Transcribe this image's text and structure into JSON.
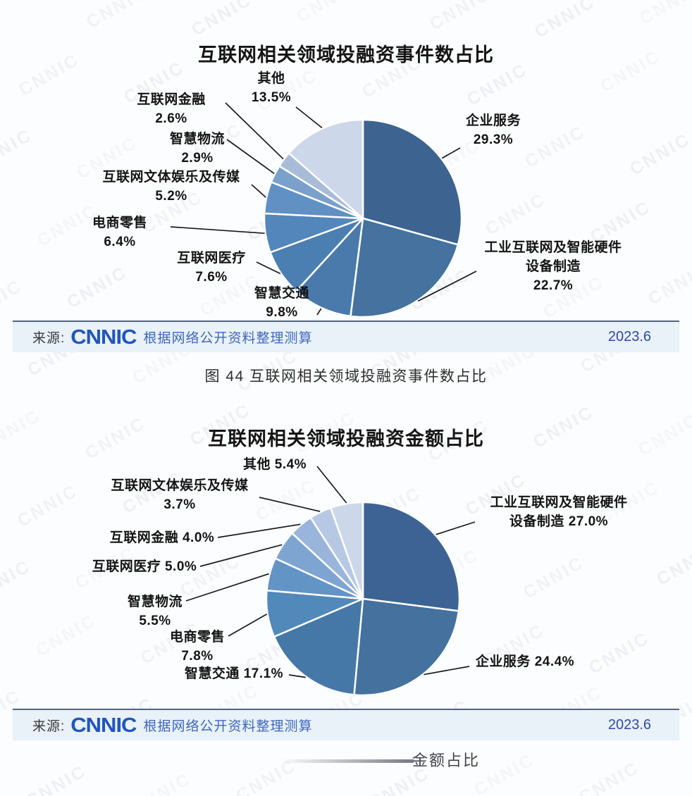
{
  "watermark": {
    "text": "CNNIC"
  },
  "chart_data": [
    {
      "type": "pie",
      "title": "互联网相关领域投融资事件数占比",
      "value_unit": "%",
      "start_angle_deg": 0,
      "direction": "clockwise",
      "legend_position": "none",
      "label_style": "callout-with-leader-lines",
      "slices": [
        {
          "label": "企业服务",
          "value": 29.3,
          "color": "#3D6391",
          "callout": [
            "企业服务",
            "29.3%"
          ]
        },
        {
          "label": "工业互联网及智能硬件设备制造",
          "value": 22.7,
          "color": "#45729F",
          "callout": [
            "工业互联网及智能硬件",
            "设备制造",
            "22.7%"
          ]
        },
        {
          "label": "智慧交通",
          "value": 9.8,
          "color": "#4A7AAB",
          "callout": [
            "智慧交通",
            "9.8%"
          ]
        },
        {
          "label": "互联网医疗",
          "value": 7.6,
          "color": "#4C7FB1",
          "callout": [
            "互联网医疗",
            "7.6%"
          ]
        },
        {
          "label": "电商零售",
          "value": 6.4,
          "color": "#5386BA",
          "callout": [
            "电商零售",
            "6.4%"
          ]
        },
        {
          "label": "互联网文体娱乐及传媒",
          "value": 5.2,
          "color": "#6090C4",
          "callout": [
            "互联网文体娱乐及传媒",
            "5.2%"
          ]
        },
        {
          "label": "智慧物流",
          "value": 2.9,
          "color": "#7AA0CC",
          "callout": [
            "智慧物流",
            "2.9%"
          ]
        },
        {
          "label": "互联网金融",
          "value": 2.6,
          "color": "#A8BCD8",
          "callout": [
            "互联网金融",
            "2.6%"
          ]
        },
        {
          "label": "其他",
          "value": 13.5,
          "color": "#CCD7EA",
          "callout": [
            "其他",
            "13.5%"
          ]
        }
      ]
    },
    {
      "type": "pie",
      "title": "互联网相关领域投融资金额占比",
      "value_unit": "%",
      "start_angle_deg": 0,
      "direction": "clockwise",
      "legend_position": "none",
      "label_style": "callout-with-leader-lines",
      "slices": [
        {
          "label": "工业互联网及智能硬件设备制造",
          "value": 27.0,
          "color": "#3D6394",
          "callout": [
            "工业互联网及智能硬件",
            "设备制造 27.0%"
          ]
        },
        {
          "label": "企业服务",
          "value": 24.4,
          "color": "#44719E",
          "callout": [
            "企业服务 24.4%"
          ]
        },
        {
          "label": "智慧交通",
          "value": 17.1,
          "color": "#4678A7",
          "callout": [
            "智慧交通 17.1%"
          ]
        },
        {
          "label": "电商零售",
          "value": 7.8,
          "color": "#5289BB",
          "callout": [
            "电商零售",
            "7.8%"
          ]
        },
        {
          "label": "智慧物流",
          "value": 5.5,
          "color": "#6394C6",
          "callout": [
            "智慧物流",
            "5.5%"
          ]
        },
        {
          "label": "互联网医疗",
          "value": 5.0,
          "color": "#7EA5D2",
          "callout": [
            "互联网医疗 5.0%"
          ]
        },
        {
          "label": "互联网金融",
          "value": 4.0,
          "color": "#9AB5DB",
          "callout": [
            "互联网金融 4.0%"
          ]
        },
        {
          "label": "互联网文体娱乐及传媒",
          "value": 3.7,
          "color": "#B7C8E5",
          "callout": [
            "互联网文体娱乐及传媒",
            "3.7%"
          ]
        },
        {
          "label": "其他",
          "value": 5.4,
          "color": "#CCD7EA",
          "callout": [
            "其他 5.4%"
          ]
        }
      ]
    }
  ],
  "source_bar": {
    "prefix": "来源:",
    "logo": "CNNIC",
    "note": "根据网络公开资料整理测算",
    "date": "2023.6"
  },
  "captions": {
    "figure_44": "图 44 互联网相关领域投融资事件数占比",
    "bottom_partial": "金额占比"
  }
}
